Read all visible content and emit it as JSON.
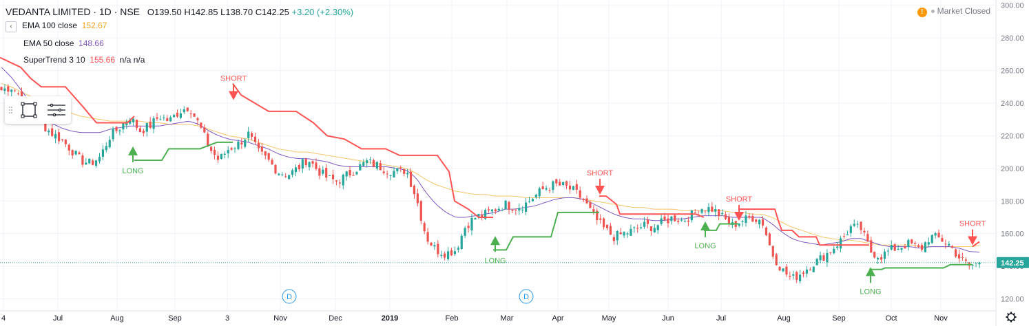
{
  "header": {
    "symbol": "VEDANTA LIMITED · 1D · NSE",
    "ohlc": "O139.50  H142.85  L138.70  C142.25",
    "change": "+3.20 (+2.30%)"
  },
  "indicators": [
    {
      "name": "EMA 100 close",
      "value": "152.67",
      "color": "#f5a623"
    },
    {
      "name": "EMA 50 close",
      "value": "148.66",
      "color": "#7e57c2"
    },
    {
      "name": "SuperTrend 3 10",
      "value": "155.66",
      "extra": "n/a  n/a",
      "color": "#ef5350"
    }
  ],
  "status": {
    "market": "Market Closed",
    "warn_glyph": "!"
  },
  "price_label": "142.25",
  "colors": {
    "up": "#26a69a",
    "down": "#ef5350",
    "long": "#4caf50",
    "short": "#ff5252",
    "ema100": "#f7c56b",
    "ema50": "#7e57c2",
    "st_up": "#4caf50",
    "st_down": "#ff5252"
  },
  "icons": [
    "collapse-icon",
    "rectangle-select-icon",
    "list-lines-icon",
    "market-warning-icon",
    "settings-gear-icon"
  ],
  "chart_data": {
    "type": "candlestick",
    "ylim": [
      116,
      302
    ],
    "y_ticks": [
      "300.00",
      "280.00",
      "260.00",
      "240.00",
      "220.00",
      "200.00",
      "180.00",
      "160.00",
      "140.00",
      "120.00"
    ],
    "x_ticks": [
      "4",
      "Jul",
      "Aug",
      "Sep",
      "3",
      "Nov",
      "Dec",
      "2019",
      "Feb",
      "Mar",
      "Apr",
      "May",
      "Jun",
      "Jul",
      "Aug",
      "Sep",
      "Oct",
      "Nov"
    ],
    "dividend_markers": [
      "D",
      "D"
    ],
    "signals": [
      {
        "label": "LONG"
      },
      {
        "label": "SHORT"
      },
      {
        "label": "LONG"
      },
      {
        "label": "SHORT"
      },
      {
        "label": "LONG"
      },
      {
        "label": "SHORT"
      },
      {
        "label": "LONG"
      },
      {
        "label": "SHORT"
      }
    ],
    "price_anchors": [
      248,
      250,
      244,
      236,
      228,
      222,
      218,
      212,
      205,
      203,
      207,
      220,
      225,
      232,
      223,
      226,
      232,
      229,
      235,
      238,
      227,
      213,
      205,
      212,
      215,
      221,
      210,
      205,
      198,
      196,
      200,
      206,
      199,
      194,
      192,
      196,
      200,
      204,
      202,
      199,
      198,
      199,
      182,
      158,
      150,
      148,
      150,
      165,
      170,
      172,
      175,
      178,
      176,
      178,
      183,
      188,
      190,
      189,
      186,
      180,
      170,
      163,
      158,
      160,
      162,
      165,
      164,
      167,
      170,
      168,
      172,
      176,
      175,
      170,
      165,
      168,
      170,
      168,
      148,
      138,
      132,
      136,
      141,
      145,
      150,
      156,
      164,
      163,
      149,
      146,
      150,
      152,
      154,
      150,
      158,
      157,
      153,
      145,
      140,
      142.25
    ],
    "ema100": [
      252,
      250,
      247,
      244,
      241,
      238,
      236,
      234,
      232,
      231,
      230,
      229,
      229,
      229,
      229,
      228,
      228,
      227,
      227,
      227,
      226,
      224,
      222,
      220,
      219,
      218,
      216,
      214,
      212,
      211,
      210,
      210,
      209,
      208,
      207,
      206,
      205,
      204,
      203,
      202,
      201,
      200,
      197,
      193,
      190,
      188,
      186,
      185,
      184,
      184,
      183,
      183,
      183,
      182,
      182,
      182,
      182,
      182,
      182,
      181,
      180,
      179,
      178,
      177,
      176,
      176,
      175,
      175,
      175,
      174,
      174,
      174,
      174,
      174,
      173,
      173,
      172,
      172,
      170,
      167,
      164,
      162,
      160,
      158,
      157,
      156,
      156,
      155,
      154,
      153,
      153,
      153,
      153,
      152,
      152,
      152,
      152,
      152,
      152,
      152.67
    ],
    "ema50": [
      262,
      256,
      248,
      240,
      233,
      228,
      225,
      223,
      222,
      222,
      222,
      224,
      225,
      226,
      226,
      226,
      226,
      227,
      228,
      229,
      227,
      223,
      220,
      218,
      217,
      216,
      214,
      212,
      209,
      207,
      206,
      206,
      205,
      204,
      202,
      201,
      201,
      201,
      201,
      201,
      200,
      199,
      194,
      185,
      178,
      173,
      170,
      170,
      171,
      172,
      173,
      175,
      175,
      176,
      177,
      179,
      181,
      182,
      182,
      181,
      178,
      175,
      172,
      170,
      169,
      169,
      168,
      168,
      169,
      169,
      170,
      171,
      171,
      171,
      170,
      170,
      170,
      170,
      166,
      161,
      157,
      155,
      154,
      153,
      154,
      155,
      157,
      157,
      155,
      153,
      152,
      152,
      152,
      151,
      152,
      152,
      152,
      151,
      149,
      148.66
    ]
  }
}
